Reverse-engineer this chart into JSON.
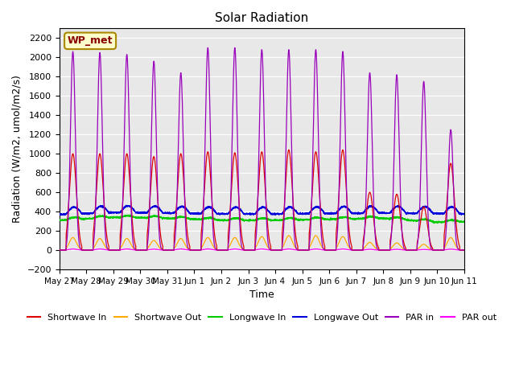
{
  "title": "Solar Radiation",
  "ylabel": "Radiation (W/m2, umol/m2/s)",
  "xlabel": "Time",
  "ylim": [
    -200,
    2300
  ],
  "yticks": [
    -200,
    0,
    200,
    400,
    600,
    800,
    1000,
    1200,
    1400,
    1600,
    1800,
    2000,
    2200
  ],
  "station_label": "WP_met",
  "bg_color": "#e8e8e8",
  "n_days": 15,
  "xtick_labels": [
    "May 27",
    "May 28",
    "May 29",
    "May 30",
    "May 31",
    "Jun 1",
    "Jun 2",
    "Jun 3",
    "Jun 4",
    "Jun 5",
    "Jun 6",
    "Jun 7",
    "Jun 8",
    "Jun 9",
    "Jun 10",
    "Jun 11"
  ],
  "series": {
    "shortwave_in": {
      "color": "#dd0000",
      "label": "Shortwave In"
    },
    "shortwave_out": {
      "color": "#ffaa00",
      "label": "Shortwave Out"
    },
    "longwave_in": {
      "color": "#00cc00",
      "label": "Longwave In"
    },
    "longwave_out": {
      "color": "#0000dd",
      "label": "Longwave Out"
    },
    "par_in": {
      "color": "#9900bb",
      "label": "PAR in"
    },
    "par_out": {
      "color": "#ff00ff",
      "label": "PAR out"
    }
  }
}
